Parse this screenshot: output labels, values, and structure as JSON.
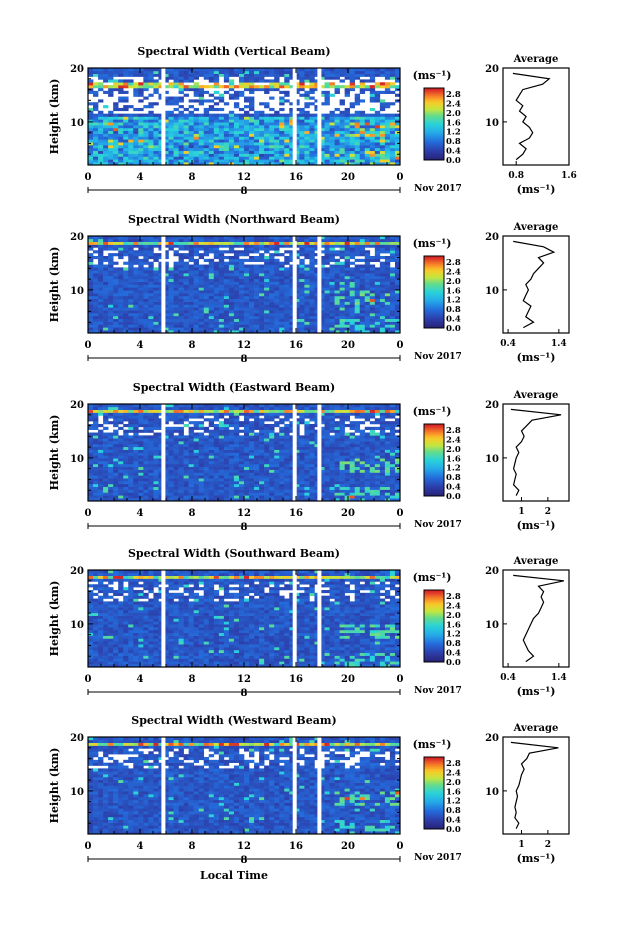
{
  "figure": {
    "xlabel": "Local Time",
    "ylabel": "Height (km)",
    "date_label": "Nov 2017",
    "day_marker": "8",
    "unit_label": "(ms⁻¹)",
    "average_title": "Average",
    "x_ticks": [
      "0",
      "4",
      "8",
      "12",
      "16",
      "20",
      "0"
    ],
    "y_ticks": [
      "20",
      "10"
    ],
    "colorbar_ticks": [
      "2.8",
      "2.4",
      "2.0",
      "1.6",
      "1.2",
      "0.8",
      "0.4",
      "0.0"
    ],
    "colors": {
      "low": "#2a2f9b",
      "mid": "#1ec3e0",
      "high": "#e8322a",
      "gap": "#ffffff"
    }
  },
  "chart_data": [
    {
      "type": "heatmap",
      "title": "Spectral Width (Vertical Beam)",
      "xlabel": "",
      "ylabel": "Height (km)",
      "xlim": [
        0,
        24
      ],
      "ylim": [
        2,
        20
      ],
      "x_tick_labels": [
        "0",
        "4",
        "8",
        "12",
        "16",
        "20",
        "0"
      ],
      "colorbar": {
        "label": "(ms⁻¹)",
        "range": [
          0.0,
          3.0
        ]
      },
      "data_gaps_hours": [
        5.8,
        15.9,
        17.8
      ],
      "average_profile": {
        "title": "Average",
        "xlabel": "(ms⁻¹)",
        "x_tick_labels": [
          "0.8",
          "1.6"
        ],
        "xlim": [
          0.6,
          1.6
        ],
        "heights_km": [
          3,
          4,
          5,
          6,
          7,
          8,
          9,
          10,
          11,
          12,
          13,
          14,
          15,
          16,
          17,
          18,
          19
        ],
        "values": [
          0.8,
          0.9,
          0.95,
          0.85,
          1.0,
          1.05,
          1.0,
          0.9,
          0.95,
          0.85,
          0.9,
          0.8,
          0.85,
          0.9,
          1.2,
          1.3,
          0.75
        ]
      }
    },
    {
      "type": "heatmap",
      "title": "Spectral Width (Northward Beam)",
      "xlabel": "",
      "ylabel": "Height (km)",
      "xlim": [
        0,
        24
      ],
      "ylim": [
        2,
        20
      ],
      "x_tick_labels": [
        "0",
        "4",
        "8",
        "12",
        "16",
        "20",
        "0"
      ],
      "colorbar": {
        "label": "(ms⁻¹)",
        "range": [
          0.0,
          3.0
        ]
      },
      "data_gaps_hours": [
        5.8,
        15.9,
        17.8
      ],
      "average_profile": {
        "title": "Average",
        "xlabel": "(ms⁻¹)",
        "x_tick_labels": [
          "0.4",
          "1.4"
        ],
        "xlim": [
          0.3,
          1.6
        ],
        "heights_km": [
          3,
          4,
          5,
          6,
          7,
          8,
          9,
          10,
          11,
          12,
          13,
          14,
          15,
          16,
          17,
          18,
          19
        ],
        "values": [
          0.7,
          0.9,
          0.75,
          0.8,
          0.85,
          0.7,
          0.75,
          0.8,
          0.75,
          0.85,
          0.9,
          1.0,
          1.1,
          1.0,
          1.3,
          1.1,
          0.5
        ]
      }
    },
    {
      "type": "heatmap",
      "title": "Spectral Width (Eastward Beam)",
      "xlabel": "",
      "ylabel": "Height (km)",
      "xlim": [
        0,
        24
      ],
      "ylim": [
        2,
        20
      ],
      "x_tick_labels": [
        "0",
        "4",
        "8",
        "12",
        "16",
        "20",
        "0"
      ],
      "colorbar": {
        "label": "(ms⁻¹)",
        "range": [
          0.0,
          3.0
        ]
      },
      "data_gaps_hours": [
        5.8,
        15.9,
        17.8
      ],
      "average_profile": {
        "title": "Average",
        "xlabel": "(ms⁻¹)",
        "x_tick_labels": [
          "1",
          "2"
        ],
        "xlim": [
          0.3,
          2.8
        ],
        "heights_km": [
          3,
          4,
          5,
          6,
          7,
          8,
          9,
          10,
          11,
          12,
          13,
          14,
          15,
          16,
          17,
          18,
          19
        ],
        "values": [
          0.8,
          0.9,
          0.7,
          0.75,
          0.8,
          0.7,
          0.75,
          0.8,
          0.9,
          0.8,
          1.0,
          1.1,
          1.0,
          1.2,
          1.4,
          2.5,
          0.6
        ]
      }
    },
    {
      "type": "heatmap",
      "title": "Spectral Width (Southward Beam)",
      "xlabel": "",
      "ylabel": "Height (km)",
      "xlim": [
        0,
        24
      ],
      "ylim": [
        2,
        20
      ],
      "x_tick_labels": [
        "0",
        "4",
        "8",
        "12",
        "16",
        "20",
        "0"
      ],
      "colorbar": {
        "label": "(ms⁻¹)",
        "range": [
          0.0,
          3.0
        ]
      },
      "data_gaps_hours": [
        5.8,
        15.9,
        17.8
      ],
      "average_profile": {
        "title": "Average",
        "xlabel": "(ms⁻¹)",
        "x_tick_labels": [
          "0.4",
          "1.4"
        ],
        "xlim": [
          0.3,
          1.6
        ],
        "heights_km": [
          3,
          4,
          5,
          6,
          7,
          8,
          9,
          10,
          11,
          12,
          13,
          14,
          15,
          16,
          17,
          18,
          19
        ],
        "values": [
          0.75,
          0.9,
          0.8,
          0.75,
          0.7,
          0.75,
          0.8,
          0.85,
          0.9,
          1.0,
          1.05,
          1.1,
          1.05,
          1.1,
          1.0,
          1.5,
          0.5
        ]
      }
    },
    {
      "type": "heatmap",
      "title": "Spectral Width (Westward Beam)",
      "xlabel": "Local Time",
      "ylabel": "Height (km)",
      "xlim": [
        0,
        24
      ],
      "ylim": [
        2,
        20
      ],
      "x_tick_labels": [
        "0",
        "4",
        "8",
        "12",
        "16",
        "20",
        "0"
      ],
      "colorbar": {
        "label": "(ms⁻¹)",
        "range": [
          0.0,
          3.0
        ]
      },
      "data_gaps_hours": [
        5.8,
        15.9,
        17.8
      ],
      "average_profile": {
        "title": "Average",
        "xlabel": "(ms⁻¹)",
        "x_tick_labels": [
          "1",
          "2"
        ],
        "xlim": [
          0.3,
          2.8
        ],
        "heights_km": [
          3,
          4,
          5,
          6,
          7,
          8,
          9,
          10,
          11,
          12,
          13,
          14,
          15,
          16,
          17,
          18,
          19
        ],
        "values": [
          0.8,
          0.9,
          0.75,
          0.8,
          0.75,
          0.8,
          0.85,
          0.8,
          0.9,
          0.95,
          1.0,
          1.1,
          1.0,
          1.2,
          1.3,
          2.4,
          0.6
        ]
      }
    }
  ]
}
